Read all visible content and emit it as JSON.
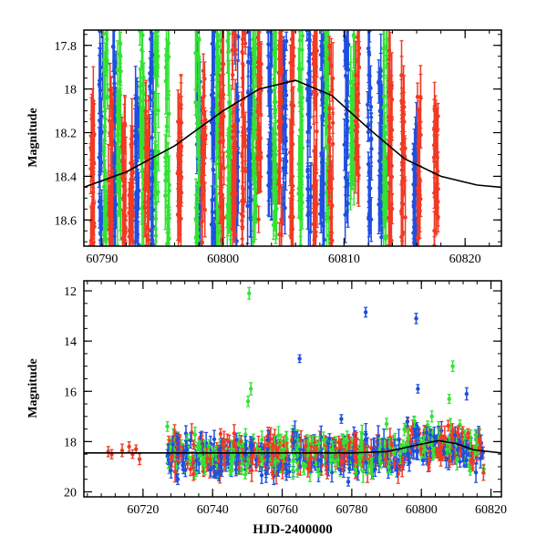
{
  "chart_data": [
    {
      "type": "scatter",
      "panel": "top",
      "title": "",
      "xlabel": "",
      "ylabel": "Magnitude",
      "xlim": [
        60788.5,
        60823
      ],
      "ylim": [
        18.72,
        17.73
      ],
      "y_inverted": true,
      "xticks": [
        60790,
        60800,
        60810,
        60820
      ],
      "yticks": [
        17.8,
        18,
        18.2,
        18.4,
        18.6
      ],
      "ytick_labels": [
        "17.8",
        "18",
        "18.2",
        "18.4",
        "18.6"
      ],
      "grid": false,
      "legend": "none",
      "series": [
        {
          "color": "#1f4fe0",
          "clusters": [
            {
              "x": 60789.9,
              "y": [
                17.73,
                18.72
              ]
            },
            {
              "x": 60791.0,
              "y": [
                17.8,
                18.72
              ]
            },
            {
              "x": 60792.9,
              "y": [
                17.95,
                18.72
              ]
            },
            {
              "x": 60794.1,
              "y": [
                17.73,
                18.72
              ]
            },
            {
              "x": 60798.0,
              "y": [
                17.85,
                18.72
              ]
            },
            {
              "x": 60799.2,
              "y": [
                17.73,
                18.72
              ]
            },
            {
              "x": 60801.1,
              "y": [
                17.73,
                18.72
              ]
            },
            {
              "x": 60802.2,
              "y": [
                17.73,
                18.6
              ]
            },
            {
              "x": 60803.9,
              "y": [
                17.73,
                18.5
              ]
            },
            {
              "x": 60805.1,
              "y": [
                17.73,
                18.6
              ]
            },
            {
              "x": 60807.1,
              "y": [
                17.73,
                18.72
              ]
            },
            {
              "x": 60808.2,
              "y": [
                17.73,
                18.72
              ]
            },
            {
              "x": 60810.2,
              "y": [
                17.73,
                18.6
              ]
            },
            {
              "x": 60812.1,
              "y": [
                17.73,
                18.65
              ]
            },
            {
              "x": 60813.0,
              "y": [
                17.9,
                18.72
              ]
            },
            {
              "x": 60815.9,
              "y": [
                18.2,
                18.72
              ]
            }
          ]
        },
        {
          "color": "#33e233",
          "clusters": [
            {
              "x": 60790.3,
              "y": [
                17.73,
                18.72
              ]
            },
            {
              "x": 60791.4,
              "y": [
                17.73,
                18.72
              ]
            },
            {
              "x": 60793.3,
              "y": [
                17.73,
                18.72
              ]
            },
            {
              "x": 60794.5,
              "y": [
                17.73,
                18.72
              ]
            },
            {
              "x": 60795.4,
              "y": [
                17.73,
                18.72
              ]
            },
            {
              "x": 60797.9,
              "y": [
                17.73,
                18.72
              ]
            },
            {
              "x": 60799.6,
              "y": [
                17.73,
                18.72
              ]
            },
            {
              "x": 60800.5,
              "y": [
                17.73,
                18.72
              ]
            },
            {
              "x": 60802.6,
              "y": [
                17.73,
                18.72
              ]
            },
            {
              "x": 60804.3,
              "y": [
                17.73,
                18.72
              ]
            },
            {
              "x": 60806.4,
              "y": [
                17.73,
                18.72
              ]
            },
            {
              "x": 60808.6,
              "y": [
                17.73,
                18.72
              ]
            },
            {
              "x": 60810.7,
              "y": [
                17.73,
                18.45
              ]
            },
            {
              "x": 60813.4,
              "y": [
                17.73,
                18.72
              ]
            }
          ]
        },
        {
          "color": "#f03a25",
          "clusters": [
            {
              "x": 60789.2,
              "y": [
                18.05,
                18.72
              ]
            },
            {
              "x": 60790.7,
              "y": [
                17.95,
                18.72
              ]
            },
            {
              "x": 60791.8,
              "y": [
                18.1,
                18.72
              ]
            },
            {
              "x": 60792.4,
              "y": [
                18.2,
                18.72
              ]
            },
            {
              "x": 60793.7,
              "y": [
                18.1,
                18.72
              ]
            },
            {
              "x": 60796.4,
              "y": [
                18.0,
                18.6
              ]
            },
            {
              "x": 60798.4,
              "y": [
                17.9,
                18.72
              ]
            },
            {
              "x": 60799.9,
              "y": [
                17.73,
                18.72
              ]
            },
            {
              "x": 60800.9,
              "y": [
                17.73,
                18.72
              ]
            },
            {
              "x": 60801.7,
              "y": [
                17.73,
                18.72
              ]
            },
            {
              "x": 60803.0,
              "y": [
                17.73,
                18.7
              ]
            },
            {
              "x": 60804.7,
              "y": [
                17.73,
                18.72
              ]
            },
            {
              "x": 60805.7,
              "y": [
                17.73,
                18.72
              ]
            },
            {
              "x": 60807.6,
              "y": [
                17.73,
                18.72
              ]
            },
            {
              "x": 60808.9,
              "y": [
                17.73,
                18.72
              ]
            },
            {
              "x": 60811.1,
              "y": [
                17.73,
                18.4
              ]
            },
            {
              "x": 60813.8,
              "y": [
                17.8,
                18.72
              ]
            },
            {
              "x": 60814.9,
              "y": [
                17.9,
                18.72
              ]
            },
            {
              "x": 60816.2,
              "y": [
                18.0,
                18.72
              ]
            },
            {
              "x": 60817.6,
              "y": [
                18.05,
                18.72
              ]
            }
          ]
        }
      ],
      "model_curve": {
        "color": "#000000",
        "x": [
          60788.5,
          60792,
          60796,
          60800,
          60803,
          60806,
          60809,
          60812,
          60815,
          60818,
          60821,
          60823
        ],
        "y": [
          18.45,
          18.38,
          18.26,
          18.1,
          18.0,
          17.96,
          18.03,
          18.18,
          18.32,
          18.4,
          18.44,
          18.45
        ]
      }
    },
    {
      "type": "scatter",
      "panel": "bottom",
      "title": "",
      "xlabel": "HJD-2400000",
      "ylabel": "Magnitude",
      "xlim": [
        60703,
        60823
      ],
      "ylim": [
        20.2,
        11.6
      ],
      "y_inverted": true,
      "xticks": [
        60720,
        60740,
        60760,
        60780,
        60800,
        60820
      ],
      "yticks": [
        12,
        14,
        16,
        18,
        20
      ],
      "ytick_labels": [
        "12",
        "14",
        "16",
        "18",
        "20"
      ],
      "grid": false,
      "legend": "none",
      "series": [
        {
          "color": "#f03a25",
          "points": [
            {
              "x": 60710,
              "y": 18.4
            },
            {
              "x": 60711,
              "y": 18.5
            },
            {
              "x": 60714,
              "y": 18.35
            },
            {
              "x": 60716,
              "y": 18.2
            },
            {
              "x": 60717,
              "y": 18.5
            },
            {
              "x": 60718,
              "y": 18.3
            },
            {
              "x": 60719,
              "y": 18.7
            }
          ]
        },
        {
          "color": "#33e233",
          "points": [
            {
              "x": 60750.5,
              "y": 12.1
            },
            {
              "x": 60751,
              "y": 15.9
            },
            {
              "x": 60750.2,
              "y": 16.4
            },
            {
              "x": 60809,
              "y": 15.0
            },
            {
              "x": 60808,
              "y": 16.3
            },
            {
              "x": 60727,
              "y": 17.4
            },
            {
              "x": 60790,
              "y": 17.3
            },
            {
              "x": 60798,
              "y": 17.2
            },
            {
              "x": 60803,
              "y": 17.0
            }
          ]
        },
        {
          "color": "#1f4fe0",
          "points": [
            {
              "x": 60765,
              "y": 14.7
            },
            {
              "x": 60784,
              "y": 12.85
            },
            {
              "x": 60798.5,
              "y": 13.1
            },
            {
              "x": 60799,
              "y": 15.9
            },
            {
              "x": 60813,
              "y": 16.1
            },
            {
              "x": 60777,
              "y": 17.1
            },
            {
              "x": 60796,
              "y": 17.2
            },
            {
              "x": 60730,
              "y": 19.5
            },
            {
              "x": 60741,
              "y": 19.3
            },
            {
              "x": 60762,
              "y": 19.2
            },
            {
              "x": 60779,
              "y": 19.6
            }
          ]
        }
      ],
      "dense_band": {
        "x": [
          60727,
          60818
        ],
        "y_center": 18.5,
        "y_spread": 0.9
      },
      "model_curve": {
        "color": "#000000",
        "x": [
          60703,
          60740,
          60780,
          60790,
          60800,
          60805,
          60810,
          60815,
          60823
        ],
        "y": [
          18.45,
          18.45,
          18.45,
          18.4,
          18.1,
          17.96,
          18.08,
          18.33,
          18.45
        ]
      }
    }
  ]
}
